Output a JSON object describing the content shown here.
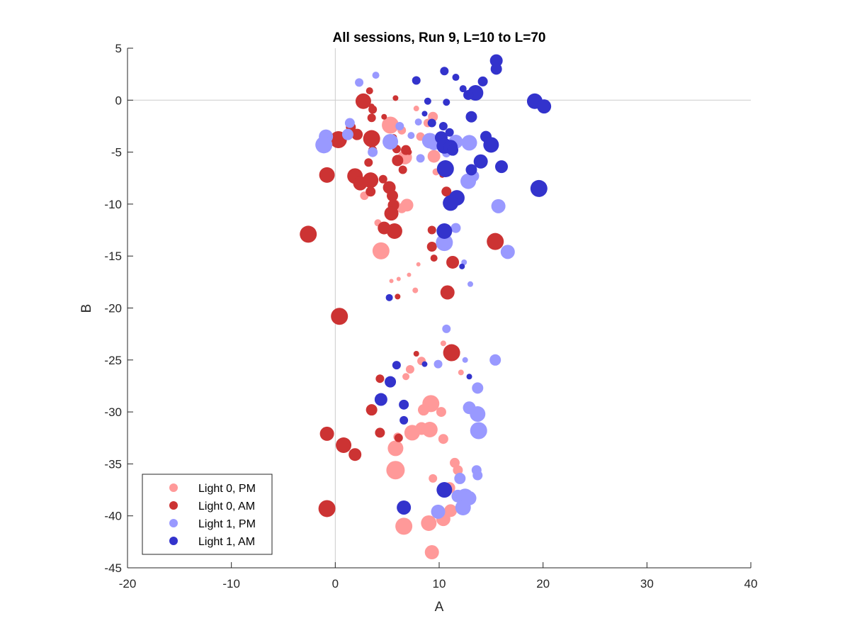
{
  "chart_data": {
    "type": "scatter",
    "title": "All sessions, Run 9, L=10 to L=70",
    "xlabel": "A",
    "ylabel": "B",
    "xlim": [
      -20,
      40
    ],
    "ylim": [
      -45,
      5
    ],
    "xticks": [
      -20,
      -10,
      0,
      10,
      20,
      30,
      40
    ],
    "yticks": [
      5,
      0,
      -5,
      -10,
      -15,
      -20,
      -25,
      -30,
      -35,
      -40,
      -45
    ],
    "reference_lines": {
      "x": 0,
      "y": 0
    },
    "legend_placement": "bottom-left",
    "marker_size_varies": true,
    "series": [
      {
        "name": "Light 0, PM",
        "color": "#ff9999",
        "points": [
          [
            5.3,
            -2.4,
            12
          ],
          [
            6.4,
            -2.9,
            6
          ],
          [
            7.8,
            -0.8,
            4
          ],
          [
            9.4,
            -1.6,
            7
          ],
          [
            8.9,
            -2.2,
            6
          ],
          [
            9.5,
            -5.4,
            9
          ],
          [
            5.2,
            -4.2,
            7
          ],
          [
            6.7,
            -5.5,
            10
          ],
          [
            5.7,
            -10.1,
            8
          ],
          [
            6.9,
            -10.1,
            9
          ],
          [
            4.1,
            -11.8,
            5
          ],
          [
            4.4,
            -14.5,
            12
          ],
          [
            2.8,
            -9.2,
            6
          ],
          [
            6.4,
            -10.4,
            7
          ],
          [
            8.2,
            -3.5,
            6
          ],
          [
            9.7,
            -6.9,
            5
          ],
          [
            5.4,
            -17.4,
            3
          ],
          [
            7.1,
            -16.8,
            3
          ],
          [
            8.0,
            -15.8,
            3
          ],
          [
            7.7,
            -18.3,
            4
          ],
          [
            6.1,
            -17.2,
            3
          ],
          [
            10.4,
            -23.4,
            4
          ],
          [
            8.3,
            -25.1,
            6
          ],
          [
            7.2,
            -25.9,
            6
          ],
          [
            6.8,
            -26.6,
            5
          ],
          [
            12.1,
            -26.2,
            4
          ],
          [
            9.2,
            -29.2,
            12
          ],
          [
            8.5,
            -29.8,
            8
          ],
          [
            10.2,
            -30.0,
            7
          ],
          [
            8.3,
            -31.6,
            9
          ],
          [
            9.1,
            -31.7,
            11
          ],
          [
            7.4,
            -32.0,
            11
          ],
          [
            6.0,
            -32.4,
            6
          ],
          [
            10.4,
            -32.6,
            7
          ],
          [
            5.8,
            -33.5,
            11
          ],
          [
            5.8,
            -35.6,
            13
          ],
          [
            9.4,
            -36.4,
            6
          ],
          [
            11.5,
            -34.9,
            7
          ],
          [
            11.8,
            -35.6,
            7
          ],
          [
            11.0,
            -37.3,
            8
          ],
          [
            11.1,
            -39.5,
            9
          ],
          [
            10.4,
            -40.3,
            10
          ],
          [
            6.6,
            -41.0,
            12
          ],
          [
            9.0,
            -40.7,
            11
          ],
          [
            9.3,
            -43.5,
            10
          ],
          [
            10.5,
            -39.8,
            6
          ]
        ]
      },
      {
        "name": "Light 0, AM",
        "color": "#cc3333",
        "points": [
          [
            2.7,
            -0.1,
            11
          ],
          [
            3.3,
            0.9,
            5
          ],
          [
            3.5,
            -0.6,
            4
          ],
          [
            3.6,
            -0.9,
            6
          ],
          [
            5.8,
            0.2,
            4
          ],
          [
            3.5,
            -1.7,
            6
          ],
          [
            0.3,
            -3.8,
            12
          ],
          [
            1.5,
            -2.6,
            7
          ],
          [
            2.1,
            -3.3,
            8
          ],
          [
            3.5,
            -3.7,
            12
          ],
          [
            4.7,
            -1.6,
            4
          ],
          [
            5.6,
            -3.6,
            5
          ],
          [
            3.6,
            -4.8,
            6
          ],
          [
            6.0,
            -5.8,
            8
          ],
          [
            6.8,
            -4.8,
            7
          ],
          [
            3.2,
            -6.0,
            6
          ],
          [
            5.9,
            -4.7,
            6
          ],
          [
            -0.8,
            -7.2,
            11
          ],
          [
            1.9,
            -7.3,
            11
          ],
          [
            3.4,
            -7.7,
            11
          ],
          [
            2.4,
            -8.0,
            10
          ],
          [
            4.6,
            -7.6,
            6
          ],
          [
            5.2,
            -8.4,
            9
          ],
          [
            5.5,
            -9.2,
            8
          ],
          [
            3.4,
            -8.8,
            7
          ],
          [
            6.5,
            -6.7,
            6
          ],
          [
            7.1,
            -5.0,
            4
          ],
          [
            5.6,
            -10.1,
            8
          ],
          [
            5.4,
            -10.9,
            10
          ],
          [
            4.7,
            -12.3,
            9
          ],
          [
            5.7,
            -12.6,
            11
          ],
          [
            -2.6,
            -12.9,
            12
          ],
          [
            9.3,
            -12.5,
            6
          ],
          [
            9.3,
            -14.1,
            7
          ],
          [
            10.7,
            -8.8,
            7
          ],
          [
            10.3,
            -7.2,
            4
          ],
          [
            11.3,
            -15.6,
            9
          ],
          [
            15.4,
            -13.6,
            12
          ],
          [
            9.5,
            -15.2,
            5
          ],
          [
            10.8,
            -18.5,
            10
          ],
          [
            6.0,
            -18.9,
            4
          ],
          [
            0.4,
            -20.8,
            12
          ],
          [
            7.8,
            -24.4,
            4
          ],
          [
            11.2,
            -24.3,
            12
          ],
          [
            4.3,
            -26.8,
            6
          ],
          [
            3.5,
            -29.8,
            8
          ],
          [
            -0.8,
            -32.1,
            10
          ],
          [
            0.8,
            -33.2,
            11
          ],
          [
            1.9,
            -34.1,
            9
          ],
          [
            4.3,
            -32.0,
            7
          ],
          [
            6.1,
            -32.5,
            6
          ],
          [
            -0.8,
            -39.3,
            12
          ]
        ]
      },
      {
        "name": "Light 1, PM",
        "color": "#9999ff",
        "points": [
          [
            2.3,
            1.7,
            6
          ],
          [
            3.9,
            2.4,
            5
          ],
          [
            1.4,
            -2.2,
            7
          ],
          [
            1.2,
            -3.3,
            8
          ],
          [
            -0.9,
            -3.5,
            10
          ],
          [
            -1.1,
            -4.3,
            12
          ],
          [
            3.6,
            -5.0,
            7
          ],
          [
            5.3,
            -4.0,
            11
          ],
          [
            6.2,
            -2.5,
            6
          ],
          [
            7.3,
            -3.4,
            5
          ],
          [
            8.0,
            -2.1,
            5
          ],
          [
            9.1,
            -3.9,
            11
          ],
          [
            9.5,
            -4.2,
            9
          ],
          [
            11.6,
            -4.0,
            10
          ],
          [
            12.9,
            -4.1,
            11
          ],
          [
            8.2,
            -5.6,
            6
          ],
          [
            10.7,
            -5.1,
            6
          ],
          [
            12.8,
            -7.8,
            11
          ],
          [
            13.3,
            -7.3,
            8
          ],
          [
            15.7,
            -10.2,
            10
          ],
          [
            11.6,
            -12.3,
            7
          ],
          [
            10.5,
            -13.7,
            12
          ],
          [
            16.6,
            -14.6,
            10
          ],
          [
            12.4,
            -15.6,
            4
          ],
          [
            13.0,
            -17.7,
            4
          ],
          [
            10.7,
            -22.0,
            6
          ],
          [
            9.9,
            -25.4,
            6
          ],
          [
            12.5,
            -25.0,
            4
          ],
          [
            15.4,
            -25.0,
            8
          ],
          [
            13.7,
            -27.7,
            8
          ],
          [
            12.9,
            -29.6,
            9
          ],
          [
            13.7,
            -30.2,
            11
          ],
          [
            13.8,
            -31.8,
            12
          ],
          [
            12.0,
            -36.4,
            8
          ],
          [
            13.6,
            -35.6,
            7
          ],
          [
            13.7,
            -36.1,
            7
          ],
          [
            11.8,
            -38.1,
            9
          ],
          [
            12.5,
            -38.2,
            12
          ],
          [
            12.9,
            -38.3,
            10
          ],
          [
            12.3,
            -39.2,
            11
          ],
          [
            9.9,
            -39.6,
            10
          ],
          [
            10.8,
            -37.4,
            6
          ]
        ]
      },
      {
        "name": "Light 1, AM",
        "color": "#3333cc",
        "points": [
          [
            15.5,
            3.8,
            9
          ],
          [
            15.5,
            3.0,
            8
          ],
          [
            14.2,
            1.8,
            7
          ],
          [
            10.5,
            2.8,
            6
          ],
          [
            11.6,
            2.2,
            5
          ],
          [
            12.3,
            1.1,
            5
          ],
          [
            7.8,
            1.9,
            6
          ],
          [
            13.5,
            0.7,
            11
          ],
          [
            12.8,
            0.5,
            7
          ],
          [
            19.2,
            -0.1,
            11
          ],
          [
            20.1,
            -0.6,
            10
          ],
          [
            8.9,
            -0.1,
            5
          ],
          [
            10.7,
            -0.2,
            5
          ],
          [
            13.1,
            -1.6,
            8
          ],
          [
            10.4,
            -2.5,
            6
          ],
          [
            11.0,
            -3.1,
            6
          ],
          [
            10.2,
            -3.6,
            9
          ],
          [
            9.3,
            -2.2,
            6
          ],
          [
            8.6,
            -1.3,
            4
          ],
          [
            10.5,
            -4.4,
            11
          ],
          [
            11.1,
            -4.5,
            10
          ],
          [
            11.3,
            -4.8,
            8
          ],
          [
            14.5,
            -3.5,
            8
          ],
          [
            15.0,
            -4.3,
            11
          ],
          [
            14.0,
            -5.9,
            10
          ],
          [
            16.0,
            -6.4,
            9
          ],
          [
            10.6,
            -6.6,
            12
          ],
          [
            13.1,
            -6.7,
            8
          ],
          [
            19.6,
            -8.5,
            12
          ],
          [
            11.7,
            -9.4,
            11
          ],
          [
            11.1,
            -9.9,
            11
          ],
          [
            10.5,
            -12.6,
            11
          ],
          [
            12.2,
            -16.0,
            4
          ],
          [
            5.2,
            -19.0,
            5
          ],
          [
            5.9,
            -25.5,
            6
          ],
          [
            8.6,
            -25.4,
            4
          ],
          [
            5.3,
            -27.1,
            8
          ],
          [
            4.4,
            -28.8,
            9
          ],
          [
            6.6,
            -29.3,
            7
          ],
          [
            6.6,
            -30.8,
            6
          ],
          [
            12.9,
            -26.6,
            4
          ],
          [
            10.5,
            -37.5,
            11
          ],
          [
            6.6,
            -39.2,
            10
          ]
        ]
      }
    ]
  }
}
